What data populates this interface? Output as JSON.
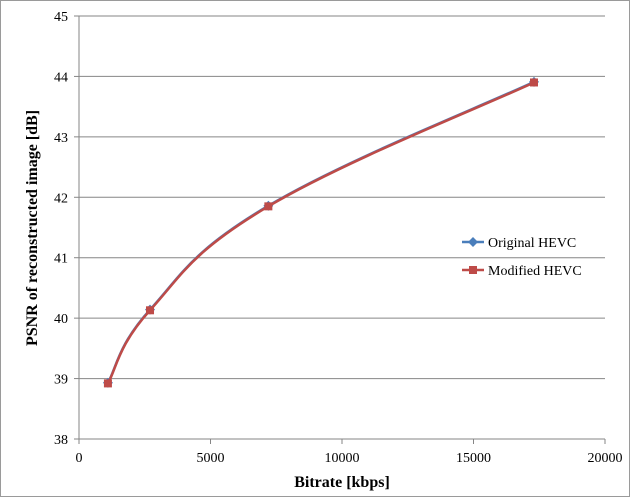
{
  "chart_data": {
    "type": "line",
    "title": "",
    "xlabel": "Bitrate [kbps]",
    "ylabel": "PSNR of reconstructed image [dB]",
    "xlim": [
      0,
      20000
    ],
    "ylim": [
      38,
      45
    ],
    "xticks": [
      0,
      5000,
      10000,
      15000,
      20000
    ],
    "yticks": [
      38,
      39,
      40,
      41,
      42,
      43,
      44,
      45
    ],
    "grid": "horizontal",
    "legend_position": "right",
    "series": [
      {
        "name": "Original HEVC",
        "marker": "diamond",
        "color": "#4a7ebb",
        "x": [
          1100,
          2700,
          7200,
          17300
        ],
        "y": [
          38.93,
          40.14,
          41.86,
          43.91
        ]
      },
      {
        "name": "Modified HEVC",
        "marker": "square",
        "color": "#be4b48",
        "x": [
          1100,
          2700,
          7200,
          17300
        ],
        "y": [
          38.92,
          40.13,
          41.85,
          43.9
        ]
      }
    ]
  }
}
